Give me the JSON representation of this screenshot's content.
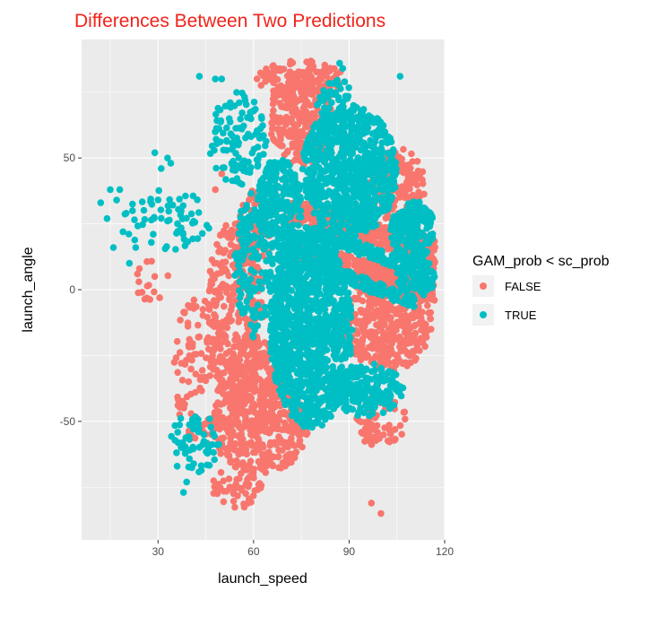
{
  "chart_data": {
    "type": "scatter",
    "title": "Differences Between Two Predictions",
    "xlabel": "launch_speed",
    "ylabel": "launch_angle",
    "xlim": [
      6,
      120
    ],
    "ylim": [
      -95,
      95
    ],
    "x_ticks": [
      30,
      60,
      90,
      120
    ],
    "y_ticks": [
      -50,
      0,
      50
    ],
    "x_tick_labels": [
      "30",
      "60",
      "90",
      "120"
    ],
    "y_tick_labels": [
      "-50",
      "0",
      "50"
    ],
    "grid": true,
    "legend": {
      "title": "GAM_prob < sc_prob",
      "placement": "right",
      "entries": [
        {
          "label": "FALSE",
          "color": "#F8766D"
        },
        {
          "label": "TRUE",
          "color": "#00BFC4"
        }
      ]
    },
    "series": [
      {
        "name": "FALSE",
        "color": "#F8766D",
        "regions": [
          {
            "shape": "ellipse",
            "cx": 75,
            "cy": 65,
            "rx": 10,
            "ry": 18,
            "n": 260
          },
          {
            "shape": "ellipse",
            "cx": 75,
            "cy": 80,
            "rx": 14,
            "ry": 7,
            "n": 110
          },
          {
            "shape": "band",
            "x0": 71,
            "y0": 30,
            "x1": 117,
            "y1": 15,
            "half": 4.5,
            "n": 320
          },
          {
            "shape": "band",
            "x0": 72,
            "y0": 14,
            "x1": 117,
            "y1": 0,
            "half": 4.5,
            "n": 320
          },
          {
            "shape": "band",
            "x0": 88,
            "y0": 26,
            "x1": 117,
            "y1": 10,
            "half": 3,
            "n": 120
          },
          {
            "shape": "ellipse",
            "cx": 102,
            "cy": -12,
            "rx": 14,
            "ry": 19,
            "n": 420
          },
          {
            "shape": "ellipse",
            "cx": 105,
            "cy": 40,
            "rx": 9,
            "ry": 14,
            "n": 190
          },
          {
            "shape": "ellipse",
            "cx": 54,
            "cy": -10,
            "rx": 9,
            "ry": 36,
            "n": 320
          },
          {
            "shape": "ellipse",
            "cx": 62,
            "cy": -52,
            "rx": 15,
            "ry": 18,
            "n": 400
          },
          {
            "shape": "ellipse",
            "cx": 60,
            "cy": -35,
            "rx": 8,
            "ry": 18,
            "n": 140
          },
          {
            "shape": "ellipse",
            "cx": 60,
            "cy": 20,
            "rx": 5,
            "ry": 18,
            "n": 90
          },
          {
            "shape": "ellipse",
            "cx": 43,
            "cy": -30,
            "rx": 8,
            "ry": 30,
            "n": 110
          },
          {
            "shape": "ellipse",
            "cx": 28,
            "cy": 5,
            "rx": 6,
            "ry": 10,
            "n": 14
          },
          {
            "shape": "ellipse",
            "cx": 55,
            "cy": -75,
            "rx": 8,
            "ry": 8,
            "n": 60
          },
          {
            "shape": "ellipse",
            "cx": 100,
            "cy": -50,
            "rx": 8,
            "ry": 10,
            "n": 60
          }
        ],
        "points": [
          [
            97,
            -81
          ],
          [
            100,
            -85
          ],
          [
            24,
            3
          ],
          [
            25,
            -1
          ],
          [
            50,
            44
          ],
          [
            48,
            38
          ]
        ]
      },
      {
        "name": "TRUE",
        "color": "#00BFC4",
        "regions": [
          {
            "shape": "ellipse",
            "cx": 78,
            "cy": -15,
            "rx": 13,
            "ry": 38,
            "n": 1200
          },
          {
            "shape": "ellipse",
            "cx": 95,
            "cy": -38,
            "rx": 12,
            "ry": 10,
            "n": 200
          },
          {
            "shape": "ellipse",
            "cx": 90,
            "cy": 45,
            "rx": 15,
            "ry": 25,
            "n": 800
          },
          {
            "shape": "ellipse",
            "cx": 68,
            "cy": 30,
            "rx": 7,
            "ry": 20,
            "n": 260
          },
          {
            "shape": "ellipse",
            "cx": 110,
            "cy": 22,
            "rx": 7,
            "ry": 12,
            "n": 200
          },
          {
            "shape": "ellipse",
            "cx": 111,
            "cy": 5,
            "rx": 6,
            "ry": 8,
            "n": 100
          },
          {
            "shape": "ellipse",
            "cx": 86,
            "cy": 70,
            "rx": 6,
            "ry": 10,
            "n": 60
          },
          {
            "shape": "ellipse",
            "cx": 55,
            "cy": 57,
            "rx": 9,
            "ry": 18,
            "n": 110
          },
          {
            "shape": "ellipse",
            "cx": 60,
            "cy": 10,
            "rx": 6,
            "ry": 28,
            "n": 160
          },
          {
            "shape": "ellipse",
            "cx": 33,
            "cy": 26,
            "rx": 14,
            "ry": 12,
            "n": 60
          },
          {
            "shape": "ellipse",
            "cx": 42,
            "cy": -58,
            "rx": 8,
            "ry": 12,
            "n": 60
          },
          {
            "shape": "band",
            "x0": 76,
            "y0": 23,
            "x1": 111,
            "y1": 8,
            "half": 2.5,
            "n": 160
          },
          {
            "shape": "band",
            "x0": 80,
            "y0": 9,
            "x1": 111,
            "y1": -5,
            "half": 2.5,
            "n": 150
          }
        ],
        "points": [
          [
            12,
            33
          ],
          [
            15,
            38
          ],
          [
            17,
            34
          ],
          [
            18,
            38
          ],
          [
            20,
            29
          ],
          [
            14,
            27
          ],
          [
            22,
            30
          ],
          [
            19,
            22
          ],
          [
            23,
            16
          ],
          [
            16,
            16
          ],
          [
            21,
            10
          ],
          [
            29,
            52
          ],
          [
            33,
            50
          ],
          [
            31,
            46
          ],
          [
            34,
            48
          ],
          [
            43,
            81
          ],
          [
            48,
            80
          ],
          [
            50,
            80
          ],
          [
            106,
            81
          ],
          [
            87,
            86
          ],
          [
            88,
            84
          ],
          [
            38,
            -77
          ],
          [
            39,
            -73
          ],
          [
            36,
            -67
          ]
        ]
      }
    ]
  }
}
